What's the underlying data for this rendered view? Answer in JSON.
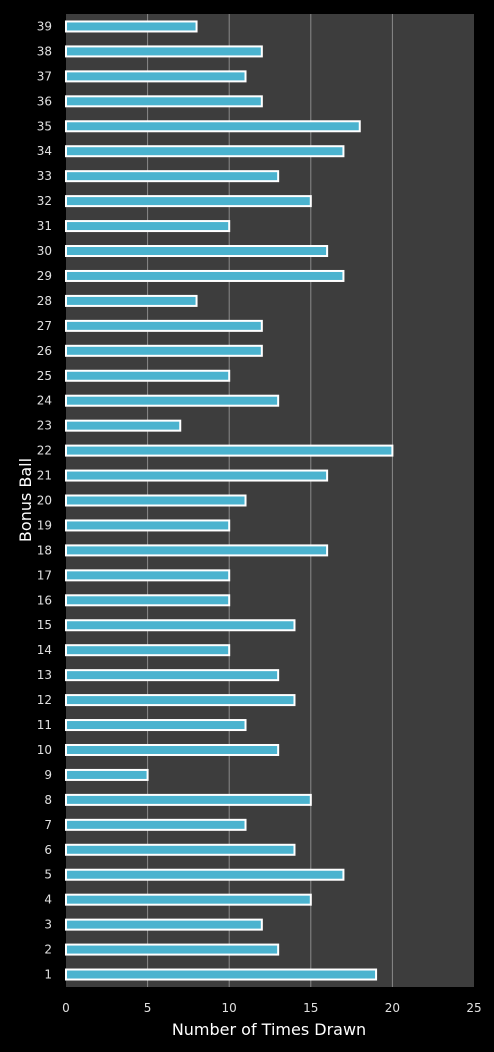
{
  "chart_data": {
    "type": "bar",
    "orientation": "horizontal",
    "xlabel": "Number of Times Drawn",
    "ylabel": "Bonus Ball",
    "xlim": [
      0,
      25
    ],
    "xticks": [
      "0",
      "5",
      "10",
      "15",
      "20",
      "25"
    ],
    "grid": true,
    "categories": [
      "1",
      "2",
      "3",
      "4",
      "5",
      "6",
      "7",
      "8",
      "9",
      "10",
      "11",
      "12",
      "13",
      "14",
      "15",
      "16",
      "17",
      "18",
      "19",
      "20",
      "21",
      "22",
      "23",
      "24",
      "25",
      "26",
      "27",
      "28",
      "29",
      "30",
      "31",
      "32",
      "33",
      "34",
      "35",
      "36",
      "37",
      "38",
      "39"
    ],
    "values": [
      19,
      13,
      12,
      15,
      17,
      14,
      11,
      15,
      5,
      13,
      11,
      14,
      13,
      10,
      14,
      10,
      10,
      16,
      10,
      11,
      16,
      20,
      7,
      13,
      10,
      12,
      12,
      8,
      17,
      16,
      10,
      15,
      13,
      17,
      18,
      12,
      11,
      12,
      8
    ],
    "colors": {
      "bar": "#4bb3cf",
      "bar_border": "#ffffff",
      "plot_bg": "#3d3d3d",
      "page_bg": "#000000",
      "grid": "#8a8a8a"
    }
  }
}
